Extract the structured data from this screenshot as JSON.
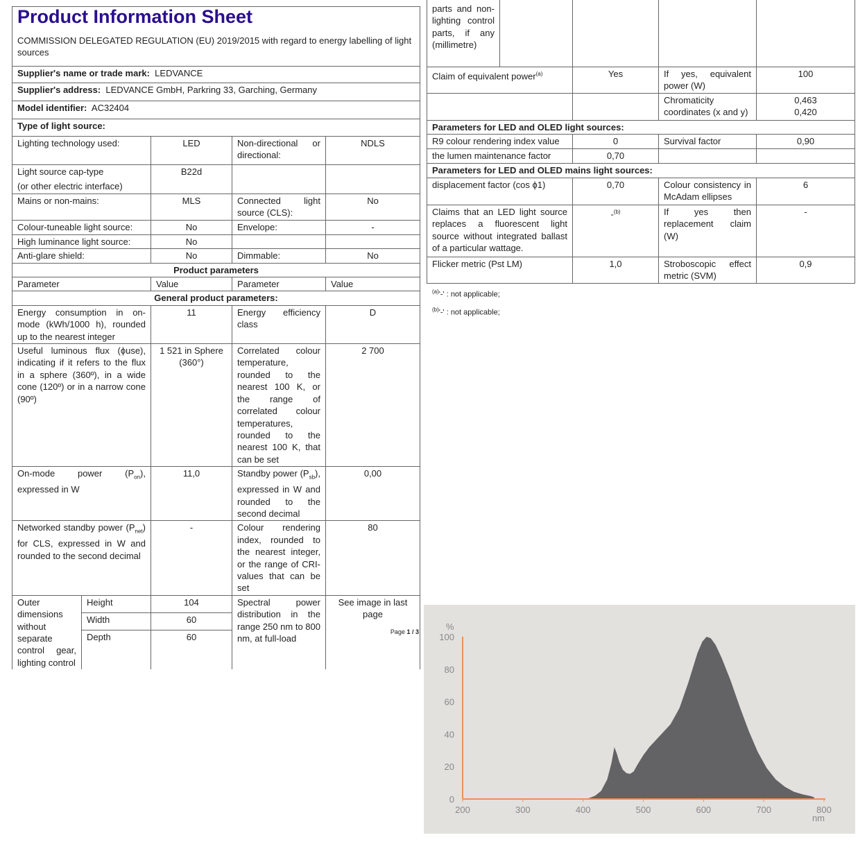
{
  "header": {
    "title": "Product Information Sheet",
    "subtitle": "COMMISSION DELEGATED REGULATION (EU) 2019/2015 with regard to energy labelling of light sources"
  },
  "supplier": {
    "name_label": "Supplier's name or trade mark:",
    "name": "LEDVANCE",
    "address_label": "Supplier's address:",
    "address": "LEDVANCE GmbH, Parkring 33, Garching, Germany",
    "model_label": "Model identifier:",
    "model": "AC32404",
    "type_label": "Type of light source:"
  },
  "type_rows": [
    {
      "p1": "Lighting technology used:",
      "v1": "LED",
      "p2": "Non-directional or directional:",
      "v2": "NDLS"
    },
    {
      "p1": "Light source cap-type",
      "p1b": "(or other electric interface)",
      "v1": "B22d",
      "p2": "",
      "v2": ""
    },
    {
      "p1": "Mains or non-mains:",
      "v1": "MLS",
      "p2": "Connected light source (CLS):",
      "v2": "No"
    },
    {
      "p1": "Colour-tuneable light source:",
      "v1": "No",
      "p2": "Envelope:",
      "v2": "-"
    },
    {
      "p1": "High luminance light source:",
      "v1": "No",
      "p2": "",
      "v2": ""
    },
    {
      "p1": "Anti-glare shield:",
      "v1": "No",
      "p2": "Dimmable:",
      "v2": "No"
    }
  ],
  "product": {
    "heading": "Product parameters",
    "col_param": "Parameter",
    "col_value": "Value",
    "general_heading": "General product parameters:"
  },
  "general_rows": [
    {
      "p1": "Energy consumption in on-mode (kWh/1000 h), rounded up to the nearest integer",
      "v1": "11",
      "p2": "Energy efficiency class",
      "v2": "D"
    },
    {
      "p1": "Useful luminous flux (ϕuse), indicating if it refers to the flux in a sphere (360º), in a wide cone (120º) or in a narrow cone (90º)",
      "v1": "1 521 in Sphere (360°)",
      "p2": "Correlated colour temperature, rounded to the nearest 100 K, or the range of correlated colour temperatures, rounded to the nearest 100 K, that can be set",
      "v2": "2 700"
    },
    {
      "p1a": "On-mode power (P",
      "p1sub": "on",
      "p1b": "), expressed in W",
      "v1": "11,0",
      "p2a": "Standby power (P",
      "p2sub": "sb",
      "p2b": "), expressed in W and rounded to the second decimal",
      "v2": "0,00"
    },
    {
      "p1a": "Networked standby power (P",
      "p1sub": "net",
      "p1b": ") for CLS, expressed in W and rounded to the second decimal",
      "v1": "-",
      "p2": "Colour rendering index, rounded to the nearest integer, or the range of CRI-values that can be set",
      "v2": "80"
    }
  ],
  "dimensions": {
    "label": "Outer dimensions without separate control gear, lighting control parts and non-lighting control parts, if any (millimetre)",
    "label_part1": "Outer dimensions without separate control gear, lighting control",
    "label_part2": "parts and non-lighting control parts, if any (millimetre)",
    "height_label": "Height",
    "height": "104",
    "width_label": "Width",
    "width": "60",
    "depth_label": "Depth",
    "depth": "60",
    "spd_label": "Spectral power distribution in the range 250 nm to 800 nm, at full-load",
    "spd_value": "See image in last page"
  },
  "right_rows": {
    "claim_label": "Claim of equivalent power",
    "claim_sup": "(a)",
    "claim": "Yes",
    "eq_power_label": "If yes, equivalent power (W)",
    "eq_power": "100",
    "chroma_label": "Chromaticity coordinates (x and y)",
    "chroma_x": "0,463",
    "chroma_y": "0,420",
    "led_heading": "Parameters for LED and OLED light sources:",
    "r9_label": "R9 colour rendering index value",
    "r9": "0",
    "survival_label": "Survival factor",
    "survival": "0,90",
    "lumen_label": "the lumen maintenance factor",
    "lumen": "0,70",
    "mains_heading": "Parameters for LED and OLED mains light sources:",
    "disp_label": "displacement factor (cos ϕ1)",
    "disp": "0,70",
    "mcadam_label": "Colour consistency in McAdam ellipses",
    "mcadam": "6",
    "fluor_label": "Claims that an LED light source replaces a fluorescent light source without integrated ballast of a particular wattage.",
    "fluor": "-",
    "fluor_sup": "(b)",
    "replace_label": "If yes then replacement claim (W)",
    "replace": "-",
    "flicker_label": "Flicker metric (Pst LM)",
    "flicker": "1,0",
    "svm_label": "Stroboscopic effect metric (SVM)",
    "svm": "0,9"
  },
  "footnotes": [
    {
      "mark": "(a)",
      "text": "'-' : not applicable;"
    },
    {
      "mark": "(b)",
      "text": "'-' : not applicable;"
    }
  ],
  "page": {
    "label": "Page",
    "current": "1",
    "total": "3"
  },
  "colors": {
    "title": "#2a0f8c",
    "chart_bg": "#e3e1de",
    "chart_fill": "#636366",
    "axis": "#e8915a"
  },
  "chart_data": {
    "type": "area",
    "xlabel": "nm",
    "ylabel": "%",
    "xlim": [
      200,
      800
    ],
    "ylim": [
      0,
      100
    ],
    "xticks": [
      200,
      300,
      400,
      500,
      600,
      700,
      800
    ],
    "yticks": [
      0,
      20,
      40,
      60,
      80,
      100
    ],
    "grid": false,
    "x": [
      400,
      410,
      420,
      430,
      440,
      447,
      452,
      456,
      460,
      466,
      472,
      478,
      484,
      490,
      500,
      510,
      520,
      530,
      545,
      560,
      575,
      590,
      598,
      605,
      612,
      620,
      630,
      645,
      660,
      675,
      690,
      705,
      720,
      735,
      750,
      765,
      778,
      783,
      785
    ],
    "y": [
      0,
      0.5,
      2,
      5,
      12,
      22,
      32,
      28,
      23,
      18,
      16,
      15.5,
      17,
      21,
      27,
      32,
      36,
      40,
      46,
      56,
      72,
      90,
      97,
      100,
      99,
      95,
      87,
      73,
      57,
      42,
      29,
      19,
      12,
      7.5,
      4.5,
      2.8,
      1.8,
      1.2,
      0
    ]
  }
}
